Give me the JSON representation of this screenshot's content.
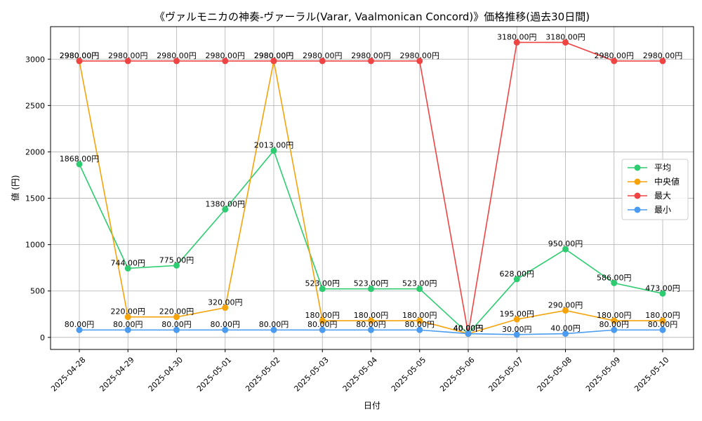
{
  "chart_data": {
    "type": "line",
    "title": "《ヴァルモニカの神奏-ヴァーラル(Varar, Vaalmonican Concord)》価格推移(過去30日間)",
    "xlabel": "日付",
    "ylabel": "値 (円)",
    "categories": [
      "2025-04-28",
      "2025-04-29",
      "2025-04-30",
      "2025-05-01",
      "2025-05-02",
      "2025-05-03",
      "2025-05-04",
      "2025-05-05",
      "2025-05-06",
      "2025-05-07",
      "2025-05-08",
      "2025-05-09",
      "2025-05-10"
    ],
    "ylim": [
      -130,
      3350
    ],
    "yticks": [
      0,
      500,
      1000,
      1500,
      2000,
      2500,
      3000
    ],
    "grid": true,
    "legend_position": "right",
    "label_suffix": "円",
    "series": [
      {
        "name": "平均",
        "color": "#2ecc71",
        "values": [
          1868,
          744,
          775,
          1380,
          2013,
          523,
          523,
          523,
          40,
          628,
          950,
          586,
          473
        ]
      },
      {
        "name": "中央値",
        "color": "#f5a30a",
        "values": [
          2980,
          220,
          220,
          320,
          2980,
          180,
          180,
          180,
          40,
          195,
          290,
          180,
          180
        ]
      },
      {
        "name": "最大",
        "color": "#ef4444",
        "values": [
          2980,
          2980,
          2980,
          2980,
          2980,
          2980,
          2980,
          2980,
          40,
          3180,
          3180,
          2980,
          2980
        ]
      },
      {
        "name": "最小",
        "color": "#4b9cf0",
        "values": [
          80,
          80,
          80,
          80,
          80,
          80,
          80,
          80,
          40,
          30,
          40,
          80,
          80
        ]
      }
    ]
  }
}
